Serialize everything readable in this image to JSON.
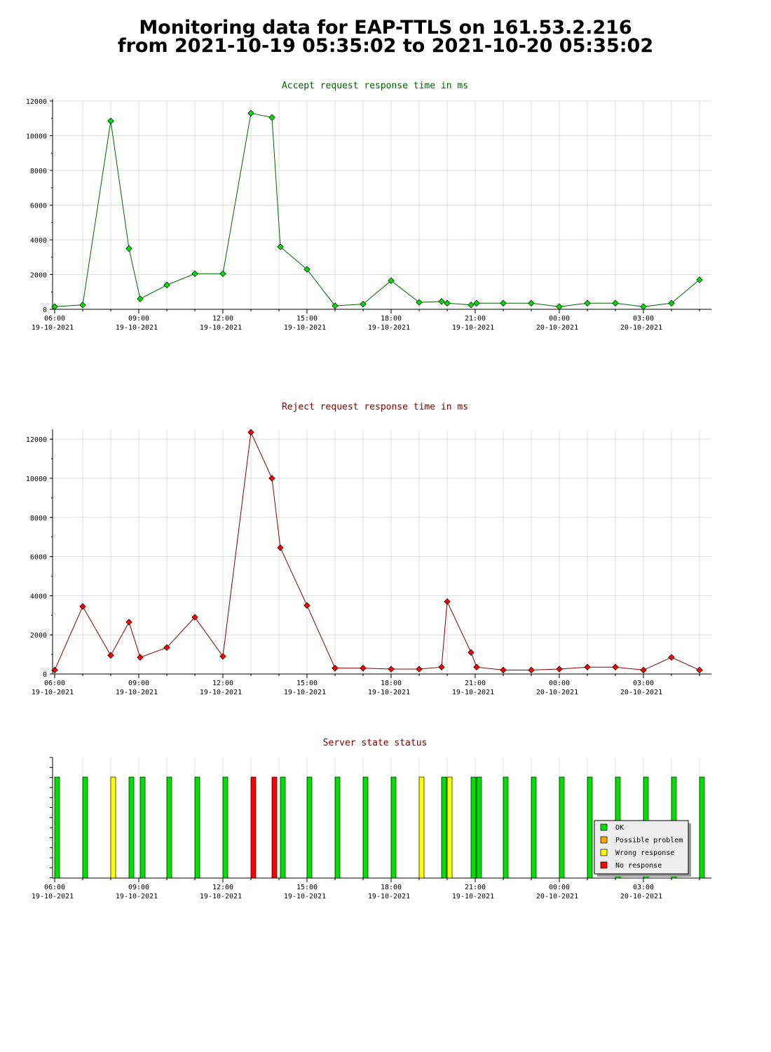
{
  "page": {
    "title_line1": "Monitoring data for EAP-TTLS on 161.53.2.216",
    "title_line2": "from 2021-10-19 05:35:02 to 2021-10-20 05:35:02"
  },
  "colors": {
    "accept_line": "#006400",
    "accept_marker": "#00e000",
    "reject_line": "#800000",
    "reject_marker": "#ff0000",
    "ok": "#00e000",
    "possible_problem": "#ffa500",
    "wrong_response": "#ffff00",
    "no_response": "#ff0000",
    "grid": "#dddddd"
  },
  "time_axis": {
    "ticks": [
      {
        "t": 6,
        "time": "06:00",
        "date": "19-10-2021"
      },
      {
        "t": 9,
        "time": "09:00",
        "date": "19-10-2021"
      },
      {
        "t": 12,
        "time": "12:00",
        "date": "19-10-2021"
      },
      {
        "t": 15,
        "time": "15:00",
        "date": "19-10-2021"
      },
      {
        "t": 18,
        "time": "18:00",
        "date": "19-10-2021"
      },
      {
        "t": 21,
        "time": "21:00",
        "date": "19-10-2021"
      },
      {
        "t": 24,
        "time": "00:00",
        "date": "20-10-2021"
      },
      {
        "t": 27,
        "time": "03:00",
        "date": "20-10-2021"
      }
    ],
    "xlim": [
      6,
      29.5
    ]
  },
  "chart_data": [
    {
      "type": "line",
      "title": "Accept request response time in ms",
      "ylim": [
        0,
        12000
      ],
      "yticks": [
        0,
        2000,
        4000,
        6000,
        8000,
        10000,
        12000
      ],
      "grid": true,
      "points": [
        [
          6.0,
          150
        ],
        [
          7.0,
          250
        ],
        [
          8.0,
          10850
        ],
        [
          8.65,
          3500
        ],
        [
          9.05,
          600
        ],
        [
          10.0,
          1400
        ],
        [
          11.0,
          2050
        ],
        [
          12.0,
          2050
        ],
        [
          13.0,
          11300
        ],
        [
          13.75,
          11050
        ],
        [
          14.05,
          3600
        ],
        [
          15.0,
          2300
        ],
        [
          16.0,
          200
        ],
        [
          17.0,
          300
        ],
        [
          18.0,
          1650
        ],
        [
          19.0,
          400
        ],
        [
          19.8,
          450
        ],
        [
          20.0,
          350
        ],
        [
          20.85,
          250
        ],
        [
          21.05,
          350
        ],
        [
          22.0,
          350
        ],
        [
          23.0,
          350
        ],
        [
          24.0,
          150
        ],
        [
          25.0,
          350
        ],
        [
          26.0,
          350
        ],
        [
          27.0,
          150
        ],
        [
          28.0,
          350
        ],
        [
          29.0,
          1700
        ]
      ]
    },
    {
      "type": "line",
      "title": "Reject request response time in ms",
      "ylim": [
        0,
        12400
      ],
      "yticks": [
        0,
        2000,
        4000,
        6000,
        8000,
        10000,
        12000
      ],
      "grid": true,
      "points": [
        [
          6.0,
          200
        ],
        [
          7.0,
          3450
        ],
        [
          8.0,
          950
        ],
        [
          8.65,
          2650
        ],
        [
          9.05,
          850
        ],
        [
          10.0,
          1350
        ],
        [
          11.0,
          2900
        ],
        [
          12.0,
          900
        ],
        [
          13.0,
          12350
        ],
        [
          13.75,
          10000
        ],
        [
          14.05,
          6450
        ],
        [
          15.0,
          3500
        ],
        [
          16.0,
          300
        ],
        [
          17.0,
          300
        ],
        [
          18.0,
          250
        ],
        [
          19.0,
          250
        ],
        [
          19.8,
          350
        ],
        [
          20.0,
          3700
        ],
        [
          20.85,
          1100
        ],
        [
          21.05,
          350
        ],
        [
          22.0,
          200
        ],
        [
          23.0,
          200
        ],
        [
          24.0,
          250
        ],
        [
          25.0,
          350
        ],
        [
          26.0,
          350
        ],
        [
          27.0,
          200
        ],
        [
          28.0,
          850
        ],
        [
          29.0,
          200
        ]
      ]
    },
    {
      "type": "bar",
      "title": "Server state status",
      "legend_position": "bottom-right",
      "legend": [
        {
          "key": "ok",
          "label": "OK"
        },
        {
          "key": "possible_problem",
          "label": "Possible problem"
        },
        {
          "key": "wrong_response",
          "label": "Wrong response"
        },
        {
          "key": "no_response",
          "label": "No response"
        }
      ],
      "states": [
        [
          6.0,
          "ok"
        ],
        [
          7.0,
          "ok"
        ],
        [
          8.0,
          "wrong_response"
        ],
        [
          8.65,
          "ok"
        ],
        [
          9.05,
          "ok"
        ],
        [
          10.0,
          "ok"
        ],
        [
          11.0,
          "ok"
        ],
        [
          12.0,
          "ok"
        ],
        [
          13.0,
          "no_response"
        ],
        [
          13.75,
          "no_response"
        ],
        [
          14.05,
          "ok"
        ],
        [
          15.0,
          "ok"
        ],
        [
          16.0,
          "ok"
        ],
        [
          17.0,
          "ok"
        ],
        [
          18.0,
          "ok"
        ],
        [
          19.0,
          "wrong_response"
        ],
        [
          19.8,
          "ok"
        ],
        [
          20.0,
          "wrong_response"
        ],
        [
          20.85,
          "ok"
        ],
        [
          21.05,
          "ok"
        ],
        [
          22.0,
          "ok"
        ],
        [
          23.0,
          "ok"
        ],
        [
          24.0,
          "ok"
        ],
        [
          25.0,
          "ok"
        ],
        [
          26.0,
          "ok"
        ],
        [
          27.0,
          "ok"
        ],
        [
          28.0,
          "ok"
        ],
        [
          29.0,
          "ok"
        ]
      ]
    }
  ]
}
